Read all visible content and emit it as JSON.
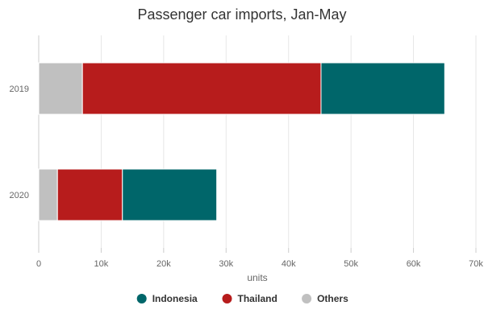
{
  "chart_data": {
    "type": "bar",
    "orientation": "horizontal",
    "stacked": true,
    "title": "Passenger car imports, Jan-May",
    "xlabel": "units",
    "ylabel": "",
    "categories": [
      "2019",
      "2020"
    ],
    "xlim": [
      0,
      70000
    ],
    "x_ticks": [
      0,
      10000,
      20000,
      30000,
      40000,
      50000,
      60000,
      70000
    ],
    "x_tick_labels": [
      "0",
      "10k",
      "20k",
      "30k",
      "40k",
      "50k",
      "60k",
      "70k"
    ],
    "grid": true,
    "legend_position": "bottom",
    "series": [
      {
        "name": "Others",
        "color": "#c0c0c0",
        "values": [
          7000,
          3000
        ]
      },
      {
        "name": "Thailand",
        "color": "#b71c1c",
        "values": [
          38200,
          10400
        ]
      },
      {
        "name": "Indonesia",
        "color": "#00666a",
        "values": [
          19800,
          15100
        ]
      }
    ],
    "legend": [
      {
        "name": "Indonesia",
        "color": "#00666a"
      },
      {
        "name": "Thailand",
        "color": "#b71c1c"
      },
      {
        "name": "Others",
        "color": "#c0c0c0"
      }
    ]
  }
}
